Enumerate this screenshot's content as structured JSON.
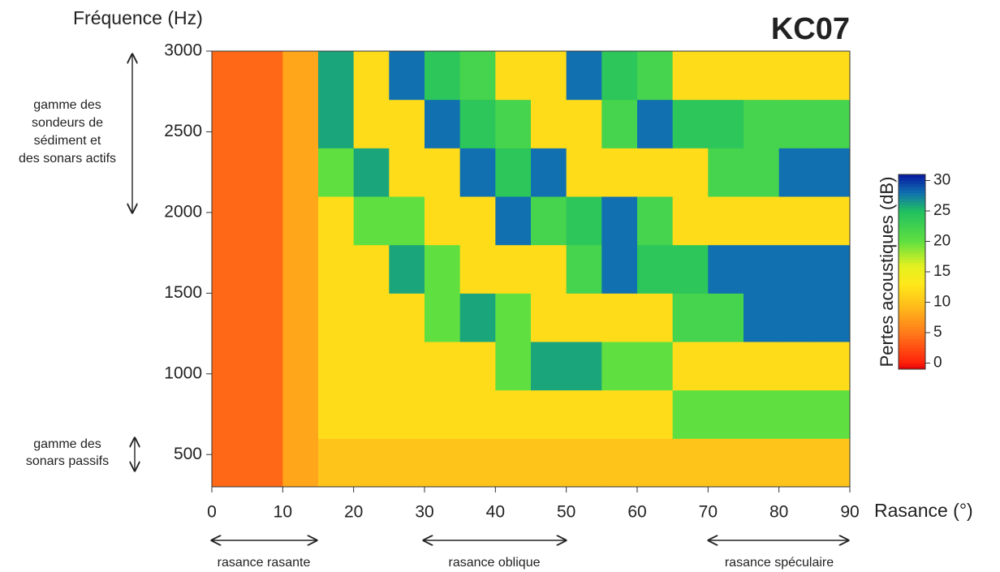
{
  "chart_data": {
    "type": "heatmap",
    "title": "KC07",
    "xlabel": "Rasance (°)",
    "ylabel": "Fréquence (Hz)",
    "colorbar_label": "Pertes acoustiques (dB)",
    "x_bins": [
      0,
      5,
      10,
      15,
      20,
      25,
      30,
      35,
      40,
      45,
      50,
      55,
      60,
      65,
      70,
      75,
      80,
      85,
      90
    ],
    "y_bins": [
      300,
      600,
      900,
      1200,
      1500,
      1800,
      2100,
      2400,
      2700,
      3000
    ],
    "values": [
      [
        4,
        4,
        8,
        10,
        10,
        10,
        10,
        10,
        10,
        10,
        10,
        10,
        10,
        10,
        10,
        10,
        10,
        10
      ],
      [
        4,
        4,
        8,
        12,
        12,
        12,
        12,
        12,
        12,
        12,
        12,
        12,
        12,
        20,
        20,
        20,
        20,
        20
      ],
      [
        4,
        4,
        8,
        12,
        12,
        12,
        12,
        12,
        20,
        26,
        26,
        20,
        20,
        12,
        12,
        12,
        12,
        12
      ],
      [
        4,
        4,
        8,
        12,
        12,
        12,
        20,
        26,
        20,
        12,
        12,
        12,
        12,
        22,
        22,
        28,
        28,
        28
      ],
      [
        4,
        4,
        8,
        12,
        12,
        26,
        20,
        12,
        12,
        12,
        22,
        28,
        24,
        24,
        28,
        28,
        28,
        28
      ],
      [
        4,
        4,
        8,
        12,
        20,
        20,
        12,
        12,
        28,
        22,
        24,
        28,
        22,
        12,
        12,
        12,
        12,
        12
      ],
      [
        4,
        4,
        8,
        20,
        26,
        12,
        12,
        28,
        24,
        28,
        12,
        12,
        12,
        12,
        22,
        22,
        28,
        28
      ],
      [
        4,
        4,
        8,
        26,
        12,
        12,
        28,
        24,
        22,
        12,
        12,
        22,
        28,
        24,
        24,
        22,
        22,
        22
      ],
      [
        4,
        4,
        8,
        26,
        12,
        28,
        24,
        22,
        12,
        12,
        28,
        24,
        22,
        12,
        12,
        12,
        12,
        12
      ]
    ],
    "xlim": [
      0,
      90
    ],
    "xticks": [
      0,
      10,
      20,
      30,
      40,
      50,
      60,
      70,
      80,
      90
    ],
    "ylim": [
      300,
      3000
    ],
    "yticks": [
      500,
      1000,
      1500,
      2000,
      2500,
      3000
    ],
    "zlim": [
      -1,
      31
    ],
    "zticks": [
      0,
      5,
      10,
      15,
      20,
      25,
      30
    ],
    "colorscale": [
      [
        -1,
        "#d8000a"
      ],
      [
        0,
        "#ff200a"
      ],
      [
        5,
        "#ff7a1a"
      ],
      [
        10,
        "#ffc41a"
      ],
      [
        13,
        "#ffe81a"
      ],
      [
        16,
        "#e4f020"
      ],
      [
        20,
        "#60e040"
      ],
      [
        25,
        "#20c060"
      ],
      [
        28,
        "#1070b0"
      ],
      [
        31,
        "#0818a0"
      ]
    ],
    "annotations": {
      "left_top": [
        "gamme des",
        "sondeurs de",
        "sédiment et",
        "des sonars actifs"
      ],
      "left_bottom": [
        "gamme des",
        "sonars passifs"
      ],
      "bottom": [
        "rasance rasante",
        "rasance oblique",
        "rasance spéculaire"
      ]
    }
  }
}
